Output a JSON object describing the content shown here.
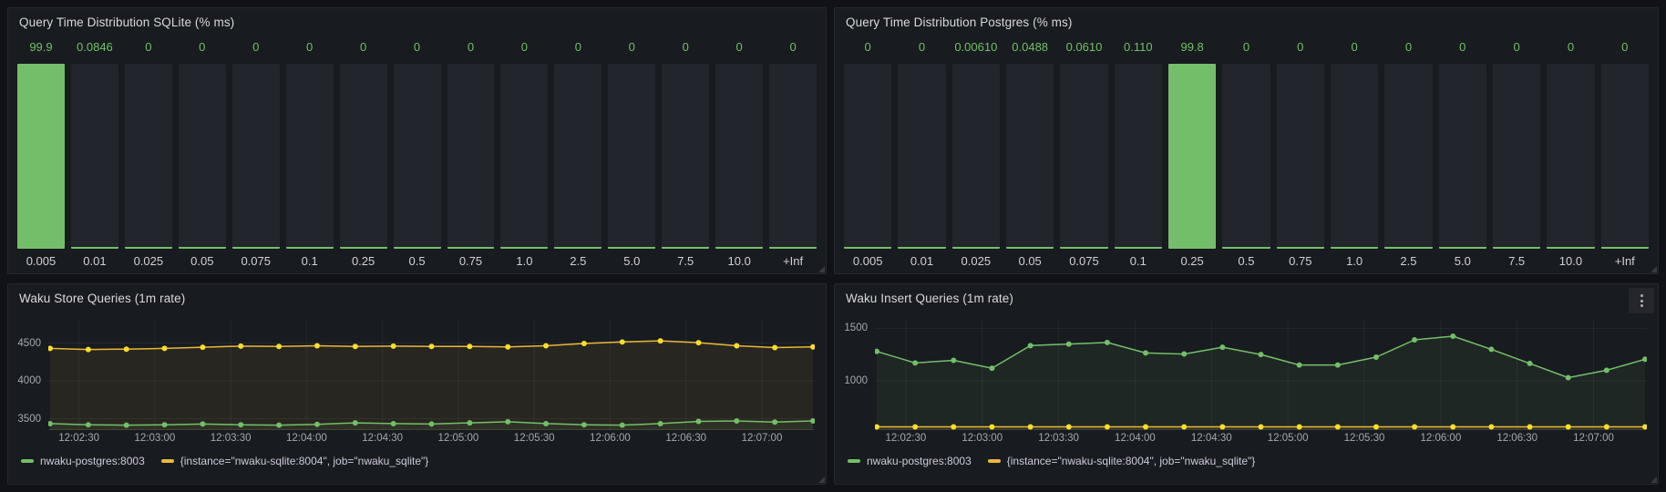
{
  "colors": {
    "background": "#111217",
    "panel_background": "#181b1f",
    "bar_track": "#22252b",
    "green": "#73bf69",
    "yellow": "#eab839",
    "yellow_dot": "#fade2a",
    "grid": "rgba(204,204,220,0.07)",
    "axis_text": "#a6a9b0",
    "title_text": "#d8d9da"
  },
  "chart_data": [
    {
      "id": "sqlite-hist",
      "type": "bar",
      "title": "Query Time Distribution SQLite (% ms)",
      "categories": [
        "0.005",
        "0.01",
        "0.025",
        "0.05",
        "0.075",
        "0.1",
        "0.25",
        "0.5",
        "0.75",
        "1.0",
        "2.5",
        "5.0",
        "7.5",
        "10.0",
        "+Inf"
      ],
      "values": [
        99.9,
        0.0846,
        0,
        0,
        0,
        0,
        0,
        0,
        0,
        0,
        0,
        0,
        0,
        0,
        0
      ],
      "value_labels": [
        "99.9",
        "0.0846",
        "0",
        "0",
        "0",
        "0",
        "0",
        "0",
        "0",
        "0",
        "0",
        "0",
        "0",
        "0",
        "0"
      ],
      "ylim": [
        0,
        100
      ],
      "bar_color": "#73bf69"
    },
    {
      "id": "postgres-hist",
      "type": "bar",
      "title": "Query Time Distribution Postgres (% ms)",
      "categories": [
        "0.005",
        "0.01",
        "0.025",
        "0.05",
        "0.075",
        "0.1",
        "0.25",
        "0.5",
        "0.75",
        "1.0",
        "2.5",
        "5.0",
        "7.5",
        "10.0",
        "+Inf"
      ],
      "values": [
        0,
        0,
        0.0061,
        0.0488,
        0.061,
        0.11,
        99.8,
        0,
        0,
        0,
        0,
        0,
        0,
        0,
        0
      ],
      "value_labels": [
        "0",
        "0",
        "0.00610",
        "0.0488",
        "0.0610",
        "0.110",
        "99.8",
        "0",
        "0",
        "0",
        "0",
        "0",
        "0",
        "0",
        "0"
      ],
      "ylim": [
        0,
        100
      ],
      "bar_color": "#73bf69"
    },
    {
      "id": "store-line",
      "type": "line",
      "title": "Waku Store Queries (1m rate)",
      "x_tick_labels": [
        "12:02:30",
        "12:03:00",
        "12:03:30",
        "12:04:00",
        "12:04:30",
        "12:05:00",
        "12:05:30",
        "12:06:00",
        "12:06:30",
        "12:07:00"
      ],
      "y_ticks": [
        4500,
        4000,
        3500
      ],
      "ylim": [
        3350,
        4820
      ],
      "grid": true,
      "legend_position": "bottom",
      "series": [
        {
          "name": "nwaku-postgres:8003",
          "color": "#73bf69",
          "values": [
            3435,
            3420,
            3415,
            3420,
            3430,
            3420,
            3415,
            3425,
            3445,
            3435,
            3430,
            3445,
            3460,
            3435,
            3420,
            3415,
            3435,
            3465,
            3470,
            3455,
            3470
          ]
        },
        {
          "name": "{instance=\"nwaku-sqlite:8004\", job=\"nwaku_sqlite\"}",
          "color": "#eab839",
          "values": [
            4430,
            4415,
            4420,
            4430,
            4445,
            4460,
            4455,
            4465,
            4455,
            4460,
            4455,
            4455,
            4450,
            4465,
            4495,
            4515,
            4530,
            4505,
            4465,
            4440,
            4450
          ]
        }
      ]
    },
    {
      "id": "insert-line",
      "type": "line",
      "title": "Waku Insert Queries (1m rate)",
      "x_tick_labels": [
        "12:02:30",
        "12:03:00",
        "12:03:30",
        "12:04:00",
        "12:04:30",
        "12:05:00",
        "12:05:30",
        "12:06:00",
        "12:06:30",
        "12:07:00"
      ],
      "y_ticks": [
        1500,
        1000
      ],
      "ylim": [
        530,
        1590
      ],
      "grid": true,
      "legend_position": "bottom",
      "series": [
        {
          "name": "nwaku-postgres:8003",
          "color": "#73bf69",
          "values": [
            1280,
            1170,
            1195,
            1120,
            1335,
            1350,
            1365,
            1265,
            1255,
            1320,
            1250,
            1150,
            1150,
            1225,
            1390,
            1425,
            1300,
            1165,
            1030,
            1100,
            1205
          ]
        },
        {
          "name": "{instance=\"nwaku-sqlite:8004\", job=\"nwaku_sqlite\"}",
          "color": "#eab839",
          "values": [
            560,
            560,
            560,
            560,
            560,
            560,
            560,
            560,
            560,
            560,
            560,
            560,
            560,
            560,
            560,
            560,
            560,
            560,
            560,
            560,
            560
          ]
        }
      ]
    }
  ]
}
